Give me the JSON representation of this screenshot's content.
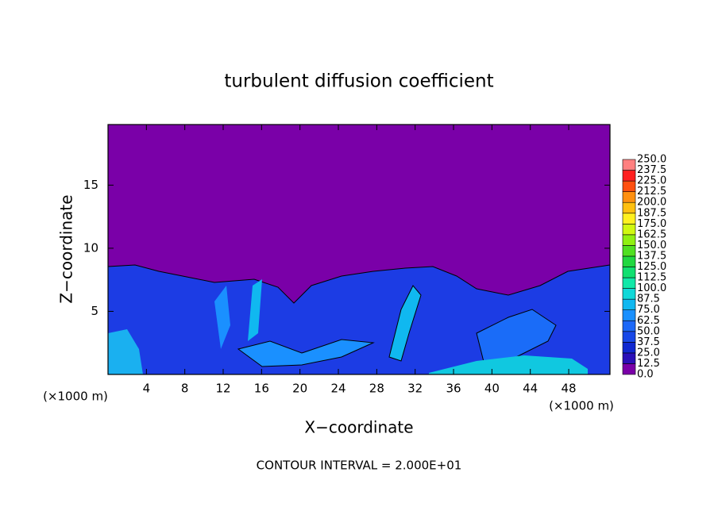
{
  "chart_data": {
    "type": "contour",
    "title": "turbulent diffusion coefficient",
    "x_label": "X−coordinate",
    "y_label": "Z−coordinate",
    "x_unit_left": "(×1000 m)",
    "x_unit_right": "(×1000 m)",
    "annotation": "CONTOUR INTERVAL = 2.000E+01",
    "xlim": [
      0,
      52.3
    ],
    "xticks": [
      4,
      8,
      12,
      16,
      20,
      24,
      28,
      32,
      36,
      40,
      44,
      48
    ],
    "ylim": [
      0,
      19.8
    ],
    "yticks": [
      5,
      10,
      15
    ],
    "colorbar": {
      "levels": [
        {
          "value": 0,
          "label": "0.0"
        },
        {
          "value": 12.5,
          "label": "12.5"
        },
        {
          "value": 25,
          "label": "25.0"
        },
        {
          "value": 37.5,
          "label": "37.5"
        },
        {
          "value": 50,
          "label": "50.0"
        },
        {
          "value": 62.5,
          "label": "62.5"
        },
        {
          "value": 75,
          "label": "75.0"
        },
        {
          "value": 87.5,
          "label": "87.5"
        },
        {
          "value": 100,
          "label": "100.0"
        },
        {
          "value": 112.5,
          "label": "112.5"
        },
        {
          "value": 125,
          "label": "125.0"
        },
        {
          "value": 137.5,
          "label": "137.5"
        },
        {
          "value": 150,
          "label": "150.0"
        },
        {
          "value": 162.5,
          "label": "162.5"
        },
        {
          "value": 175,
          "label": "175.0"
        },
        {
          "value": 187.5,
          "label": "187.5"
        },
        {
          "value": 200,
          "label": "200.0"
        },
        {
          "value": 212.5,
          "label": "212.5"
        },
        {
          "value": 225,
          "label": "225.0"
        },
        {
          "value": 237.5,
          "label": "237.5"
        },
        {
          "value": 250,
          "label": "250.0"
        }
      ],
      "colors": [
        "#7a00a8",
        "#2a10b8",
        "#1028d0",
        "#1848e8",
        "#1c68f8",
        "#1a90ff",
        "#10b8f0",
        "#10d8d8",
        "#10e8a8",
        "#10e070",
        "#20d840",
        "#50e020",
        "#90f010",
        "#d0f810",
        "#fff020",
        "#ffc010",
        "#ff9010",
        "#ff5010",
        "#ff2020",
        "#ff8080"
      ]
    }
  }
}
